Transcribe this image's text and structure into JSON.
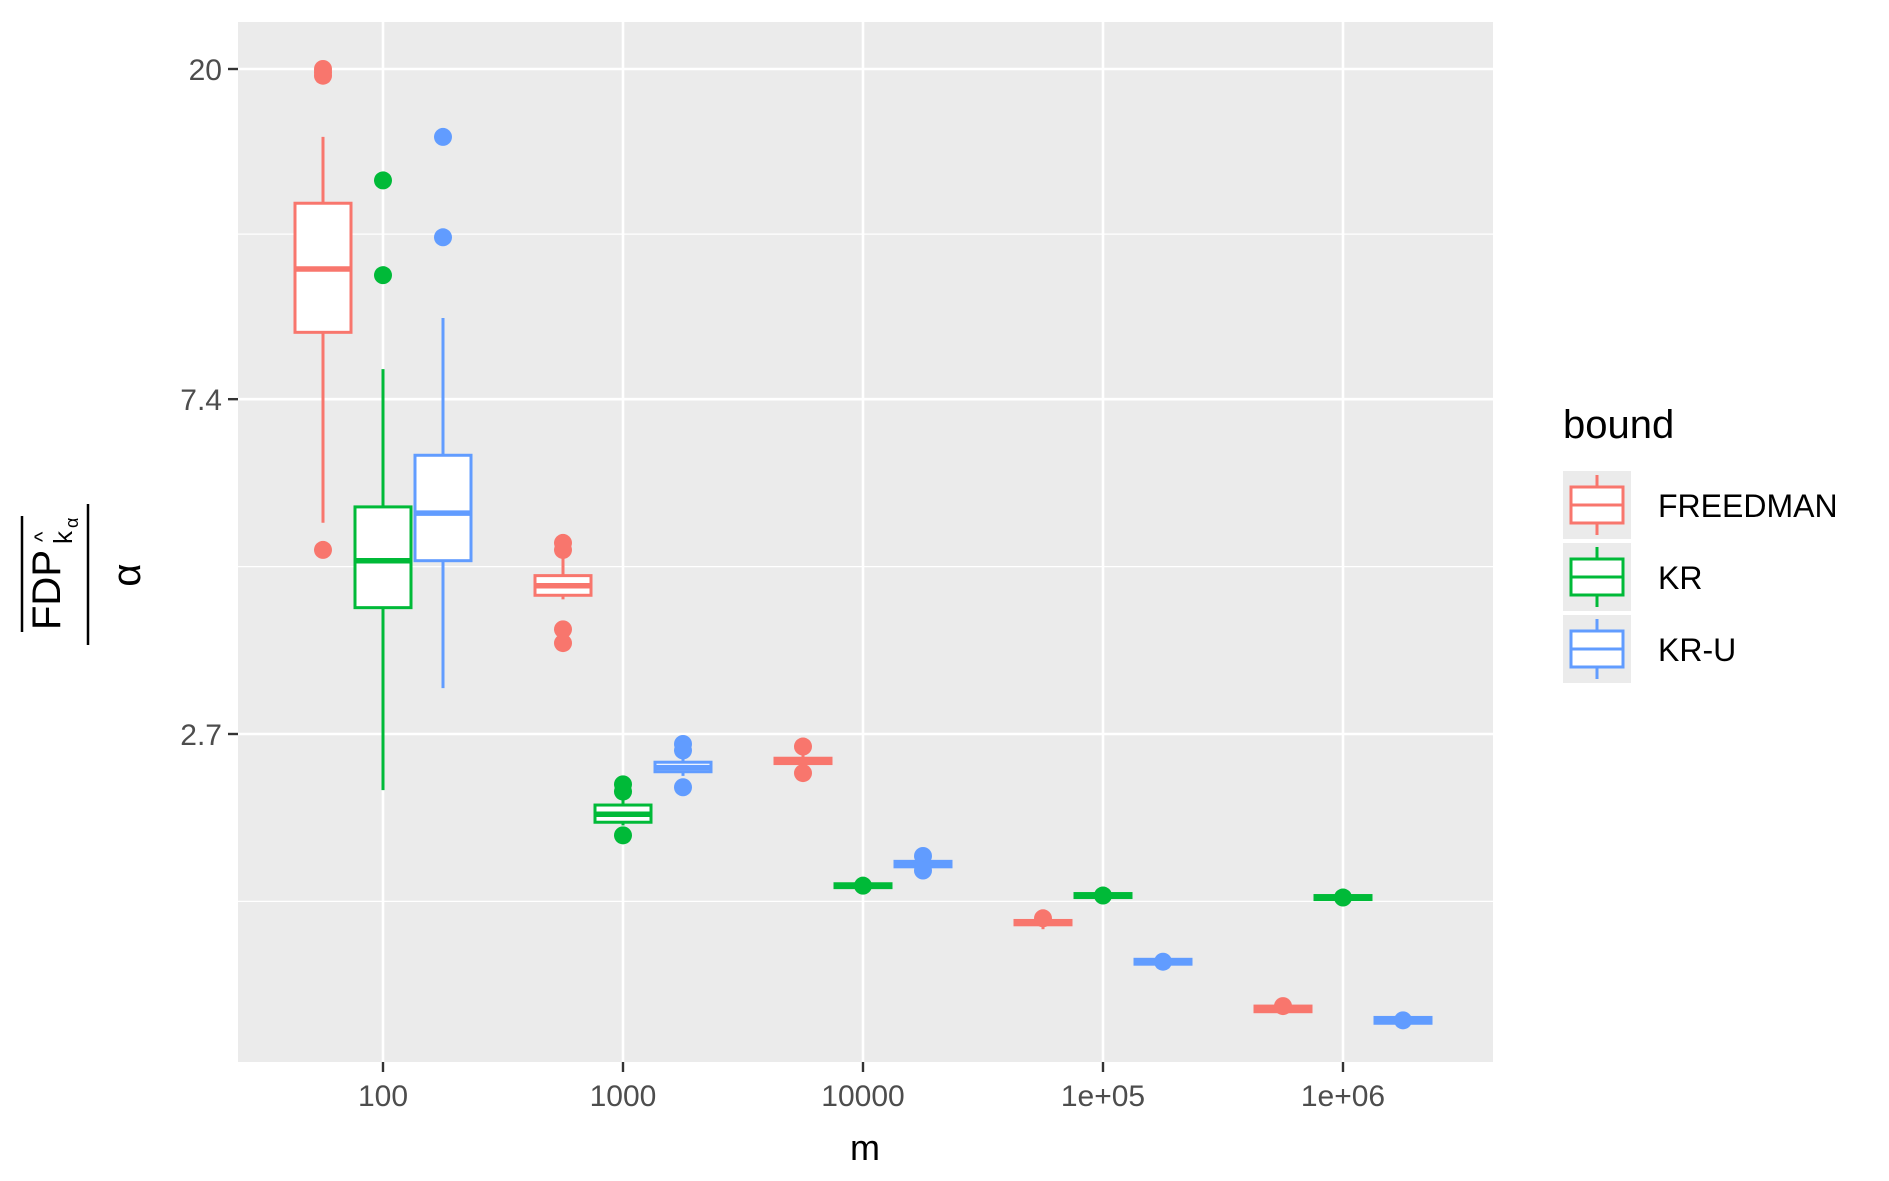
{
  "chart_data": {
    "type": "boxplot",
    "xlabel": "m",
    "ylabel": {
      "numerator": "FDP",
      "hat": "^",
      "subscript_k": "k",
      "subscript_alpha": "α",
      "denominator": "α"
    },
    "y_scale": "log",
    "y_ticks": [
      2.7,
      7.4,
      20
    ],
    "y_tick_labels": [
      "2.7",
      "7.4",
      "20"
    ],
    "ylim": [
      0.55,
      25
    ],
    "categories": [
      "100",
      "1000",
      "10000",
      "1e+05",
      "1e+06"
    ],
    "grid": true,
    "legend": {
      "title": "bound",
      "placement": "right",
      "entries": [
        "FREEDMAN",
        "KR",
        "KR-U"
      ]
    },
    "colors": {
      "FREEDMAN": "#F8766D",
      "KR": "#00BA38",
      "KR-U": "#619CFF",
      "panel": "#EBEBEB",
      "grid": "#FFFFFF"
    },
    "series": [
      {
        "name": "FREEDMAN",
        "boxes": [
          {
            "category": "100",
            "min": 5.1,
            "q1": 9.05,
            "median": 10.95,
            "q3": 13.35,
            "max": 16.3,
            "outliers": [
              19.6,
              19.8,
              20.0,
              4.7
            ]
          },
          {
            "category": "1000",
            "min": 4.05,
            "q1": 4.1,
            "median": 4.22,
            "q3": 4.35,
            "max": 4.62,
            "outliers": [
              4.7,
              4.8,
              3.7,
              3.55
            ]
          },
          {
            "category": "10000",
            "min": 2.42,
            "q1": 2.47,
            "median": 2.49,
            "q3": 2.51,
            "max": 2.56,
            "outliers": [
              2.6,
              2.4
            ]
          },
          {
            "category": "1e+05",
            "min": 1.5,
            "q1": 1.52,
            "median": 1.53,
            "q3": 1.54,
            "max": 1.56,
            "outliers": [
              1.55
            ]
          },
          {
            "category": "1e+06",
            "min": 1.16,
            "q1": 1.17,
            "median": 1.18,
            "q3": 1.19,
            "max": 1.2,
            "outliers": [
              1.19
            ]
          }
        ]
      },
      {
        "name": "KR",
        "boxes": [
          {
            "category": "100",
            "min": 2.28,
            "q1": 3.95,
            "median": 4.55,
            "q3": 5.35,
            "max": 8.1,
            "outliers": [
              14.3,
              10.75
            ]
          },
          {
            "category": "1000",
            "min": 2.05,
            "q1": 2.07,
            "median": 2.12,
            "q3": 2.18,
            "max": 2.22,
            "outliers": [
              2.32,
              2.27,
              1.99
            ]
          },
          {
            "category": "10000",
            "min": 1.69,
            "q1": 1.7,
            "median": 1.71,
            "q3": 1.72,
            "max": 1.73,
            "outliers": [
              1.71
            ]
          },
          {
            "category": "1e+05",
            "min": 1.64,
            "q1": 1.65,
            "median": 1.66,
            "q3": 1.67,
            "max": 1.68,
            "outliers": [
              1.66
            ]
          },
          {
            "category": "1e+06",
            "min": 1.63,
            "q1": 1.64,
            "median": 1.65,
            "q3": 1.66,
            "max": 1.67,
            "outliers": [
              1.65
            ]
          }
        ]
      },
      {
        "name": "KR-U",
        "boxes": [
          {
            "category": "100",
            "min": 3.1,
            "q1": 4.55,
            "median": 5.25,
            "q3": 6.25,
            "max": 9.45,
            "outliers": [
              16.3,
              12.05
            ]
          },
          {
            "category": "1000",
            "min": 2.38,
            "q1": 2.41,
            "median": 2.44,
            "q3": 2.48,
            "max": 2.53,
            "outliers": [
              2.62,
              2.57,
              2.3
            ]
          },
          {
            "category": "10000",
            "min": 1.8,
            "q1": 1.81,
            "median": 1.82,
            "q3": 1.84,
            "max": 1.85,
            "outliers": [
              1.87,
              1.79
            ]
          },
          {
            "category": "1e+05",
            "min": 1.34,
            "q1": 1.35,
            "median": 1.36,
            "q3": 1.37,
            "max": 1.38,
            "outliers": [
              1.36
            ]
          },
          {
            "category": "1e+06",
            "min": 1.12,
            "q1": 1.13,
            "median": 1.14,
            "q3": 1.15,
            "max": 1.16,
            "outliers": [
              1.14
            ]
          }
        ]
      }
    ]
  }
}
